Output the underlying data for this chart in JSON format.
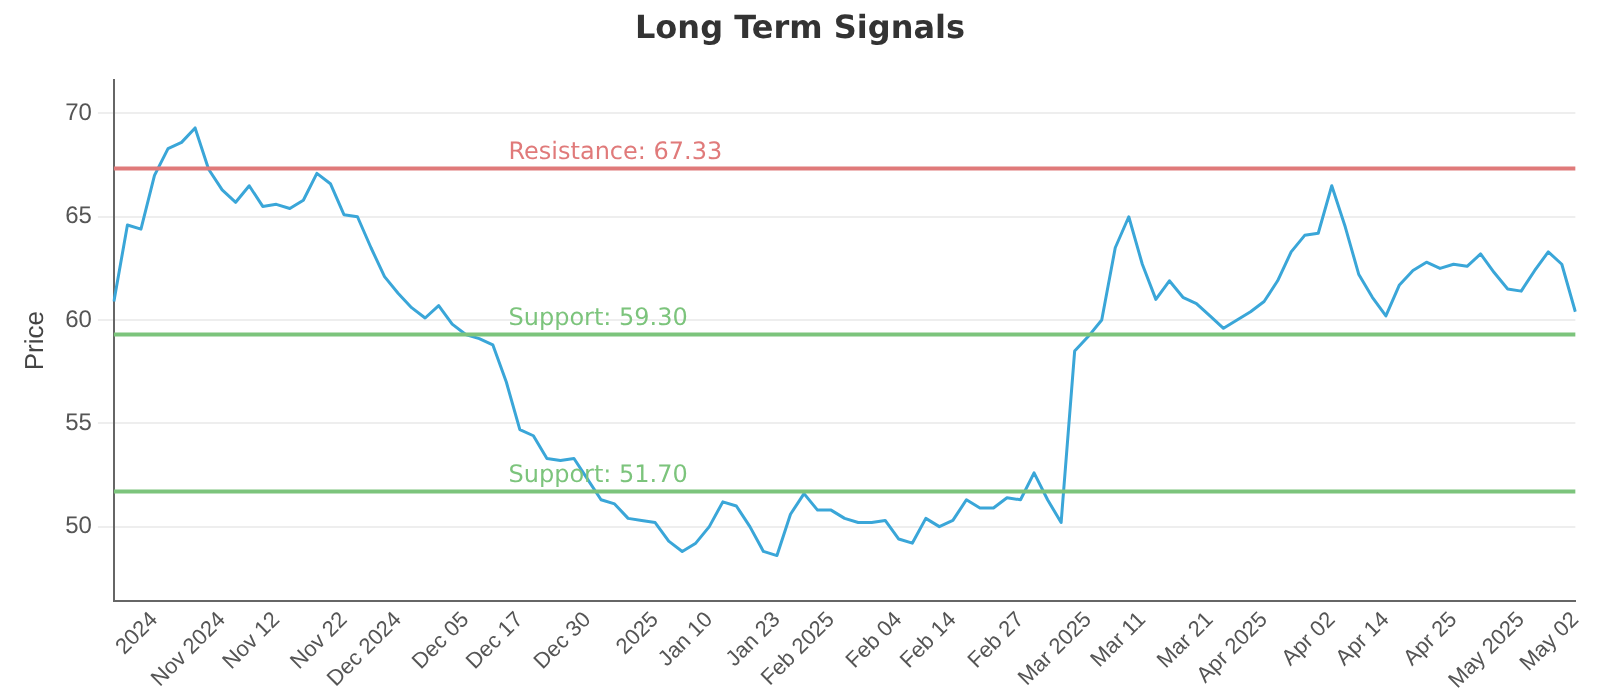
{
  "chart_data": {
    "type": "line",
    "title": "Long Term Signals",
    "ylabel": "Price",
    "categories": [
      null,
      null,
      null,
      "2024",
      null,
      null,
      null,
      null,
      "Nov 2024",
      null,
      null,
      null,
      "Nov 12",
      null,
      null,
      null,
      null,
      "Nov 22",
      null,
      null,
      null,
      "Dec 2024",
      null,
      null,
      null,
      null,
      "Dec 05",
      null,
      null,
      null,
      "Dec 17",
      null,
      null,
      null,
      null,
      "Dec 30",
      null,
      null,
      null,
      null,
      "2025",
      null,
      null,
      null,
      "Jan 10",
      null,
      null,
      null,
      null,
      "Jan 23",
      null,
      null,
      null,
      "Feb 2025",
      null,
      null,
      null,
      null,
      "Feb 04",
      null,
      null,
      null,
      "Feb 14",
      null,
      null,
      null,
      null,
      "Feb 27",
      null,
      null,
      null,
      null,
      "Mar 2025",
      null,
      null,
      null,
      "Mar 11",
      null,
      null,
      null,
      null,
      "Mar 21",
      null,
      null,
      null,
      "Apr 2025",
      null,
      null,
      null,
      null,
      "Apr 02",
      null,
      null,
      null,
      "Apr 14",
      null,
      null,
      null,
      null,
      "Apr 25",
      null,
      null,
      null,
      null,
      "May 2025",
      null,
      null,
      null,
      "May 02"
    ],
    "series": [
      {
        "color": "#3aa6d8",
        "values": [
          60.9,
          64.6,
          64.4,
          67.0,
          68.3,
          68.6,
          69.3,
          67.3,
          66.3,
          65.7,
          66.5,
          65.5,
          65.6,
          65.4,
          65.8,
          67.1,
          66.6,
          65.1,
          65.0,
          63.5,
          62.1,
          61.3,
          60.6,
          60.1,
          60.7,
          59.8,
          59.3,
          59.1,
          58.8,
          57.0,
          54.7,
          54.4,
          53.3,
          53.2,
          53.3,
          52.3,
          51.3,
          51.1,
          50.4,
          50.3,
          50.2,
          49.3,
          48.8,
          49.2,
          50.0,
          51.2,
          51.0,
          50.0,
          48.8,
          48.6,
          50.6,
          51.6,
          50.8,
          50.8,
          50.4,
          50.2,
          50.2,
          50.3,
          49.4,
          49.2,
          50.4,
          50.0,
          50.3,
          51.3,
          50.9,
          50.9,
          51.4,
          51.3,
          52.6,
          51.3,
          50.2,
          58.5,
          59.2,
          60.0,
          63.5,
          65.0,
          62.7,
          61.0,
          61.9,
          61.1,
          60.8,
          60.2,
          59.6,
          60.0,
          60.4,
          60.9,
          61.9,
          63.3,
          64.1,
          64.2,
          66.5,
          64.5,
          62.2,
          61.1,
          60.2,
          61.7,
          62.4,
          62.8,
          62.5,
          62.7,
          62.6,
          63.2,
          62.3,
          61.5,
          61.4,
          62.4,
          63.3,
          62.7,
          60.4
        ]
      }
    ],
    "ylim": [
      46.4,
      71.6
    ],
    "yticks": [
      50,
      55,
      60,
      65,
      70
    ],
    "grid": "y",
    "legend": false,
    "marker": "none",
    "line_style": "solid",
    "ref_lines": [
      {
        "axis": "y",
        "value": 67.33,
        "label": "Resistance: 67.33",
        "color": "#e07a7a"
      },
      {
        "axis": "y",
        "value": 59.3,
        "label": "Support: 59.30",
        "color": "#7cc47c"
      },
      {
        "axis": "y",
        "value": 51.7,
        "label": "Support: 51.70",
        "color": "#7cc47c"
      }
    ]
  }
}
